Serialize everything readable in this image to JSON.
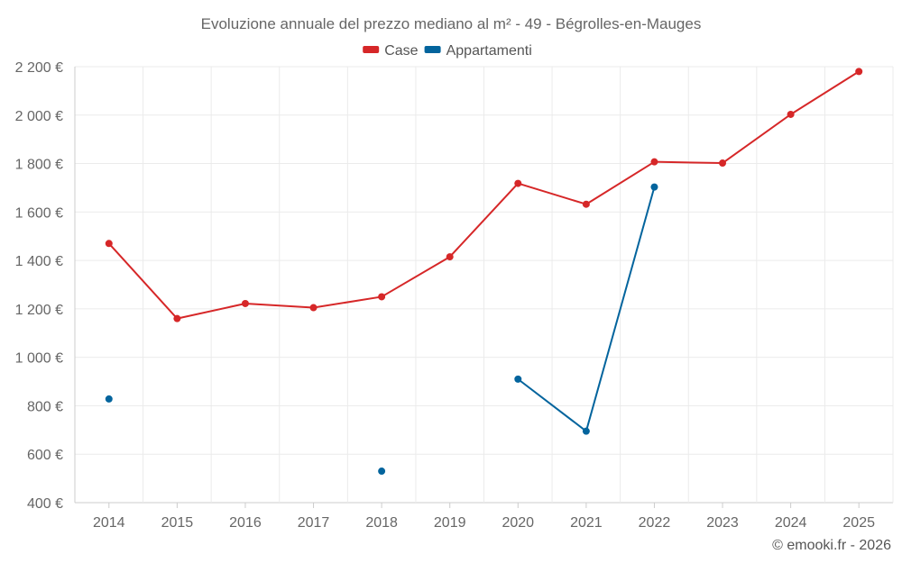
{
  "chart_data": {
    "type": "line",
    "title": "Evoluzione annuale del prezzo mediano al m² - 49 - Bégrolles-en-Mauges",
    "categories": [
      "2014",
      "2015",
      "2016",
      "2017",
      "2018",
      "2019",
      "2020",
      "2021",
      "2022",
      "2023",
      "2024",
      "2025"
    ],
    "ylim": [
      400,
      2200
    ],
    "y_ticks": [
      400,
      600,
      800,
      1000,
      1200,
      1400,
      1600,
      1800,
      2000,
      2200
    ],
    "y_tick_labels": [
      "400 €",
      "600 €",
      "800 €",
      "1 000 €",
      "1 200 €",
      "1 400 €",
      "1 600 €",
      "1 800 €",
      "2 000 €",
      "2 200 €"
    ],
    "legend_position": "top-center",
    "grid": true,
    "series": [
      {
        "name": "Case",
        "color": "#d62728",
        "values": [
          1470,
          1160,
          1222,
          1205,
          1250,
          1415,
          1718,
          1632,
          1807,
          1802,
          2003,
          2180
        ]
      },
      {
        "name": "Appartamenti",
        "color": "#03649d",
        "values": [
          828,
          null,
          null,
          null,
          530,
          null,
          910,
          695,
          1703,
          null,
          null,
          null
        ]
      }
    ]
  },
  "credit": "© emooki.fr - 2026"
}
